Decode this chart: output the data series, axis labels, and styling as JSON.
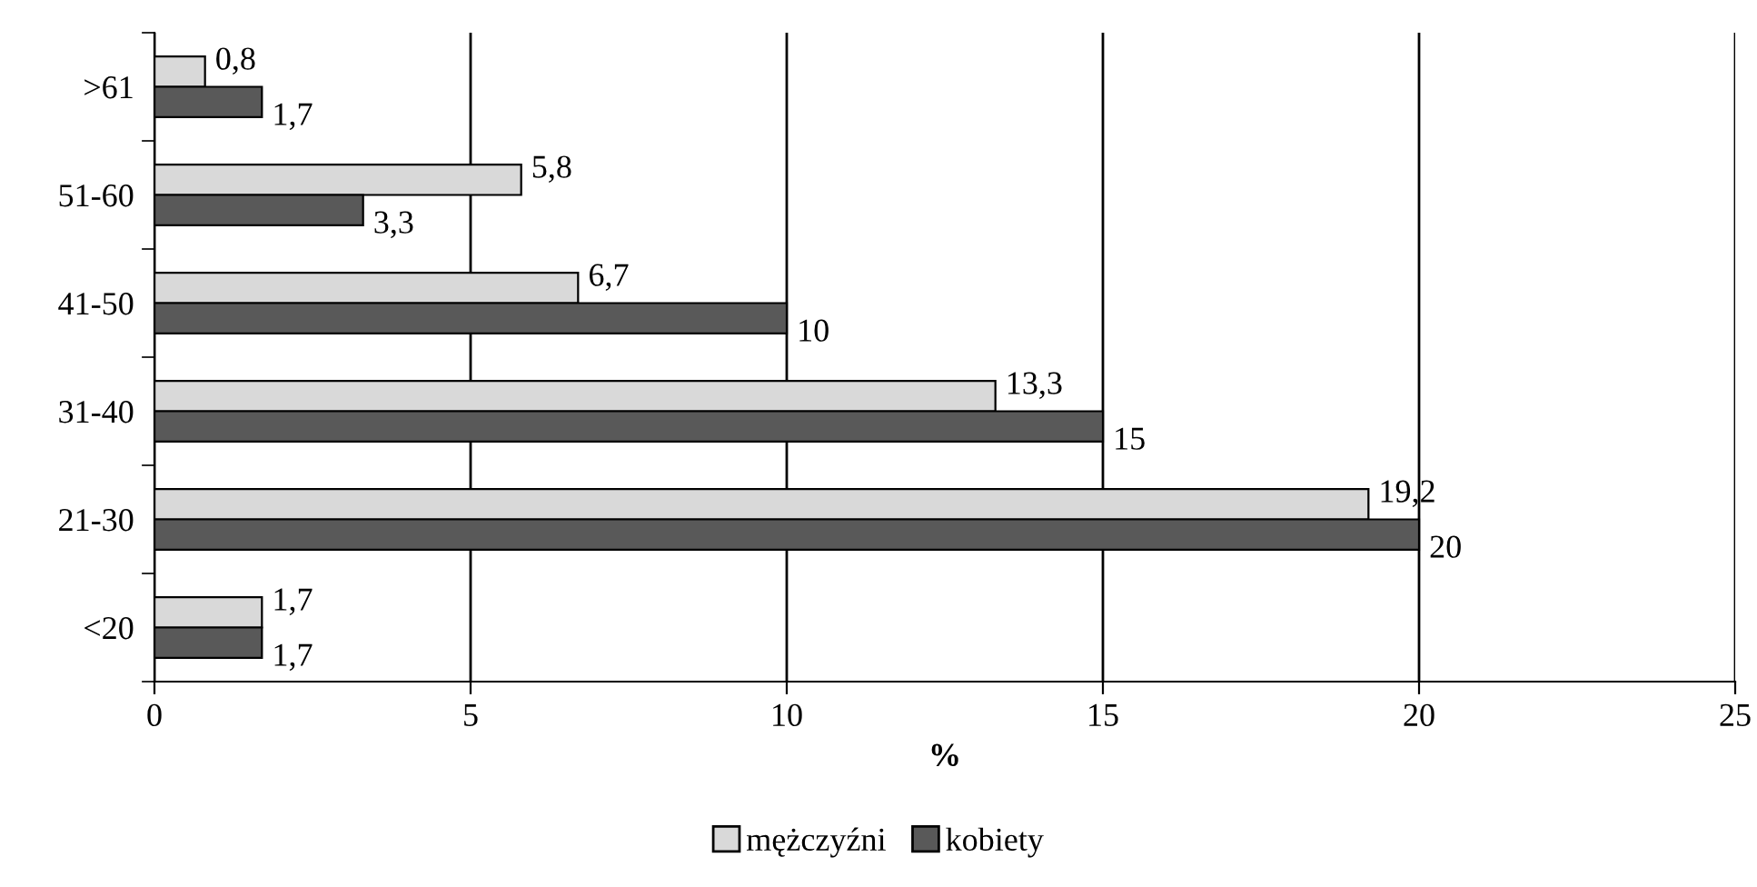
{
  "chart_data": {
    "type": "bar",
    "orientation": "horizontal",
    "xlabel": "%",
    "categories": [
      ">61",
      "51-60",
      "41-50",
      "31-40",
      "21-30",
      "<20"
    ],
    "series": [
      {
        "name": "mężczyźni",
        "color": "#d9d9d9",
        "values": [
          0.8,
          5.8,
          6.7,
          13.3,
          19.2,
          1.7
        ],
        "value_labels": [
          "0,8",
          "5,8",
          "6,7",
          "13,3",
          "19,2",
          "1,7"
        ]
      },
      {
        "name": "kobiety",
        "color": "#595959",
        "values": [
          1.7,
          3.3,
          10,
          15,
          20,
          1.7
        ],
        "value_labels": [
          "1,7",
          "3,3",
          "10",
          "15",
          "20",
          "1,7"
        ]
      }
    ],
    "xlim": [
      0,
      25
    ],
    "xticks": [
      0,
      5,
      10,
      15,
      20,
      25
    ],
    "grid": "x",
    "legend": "bottom"
  }
}
